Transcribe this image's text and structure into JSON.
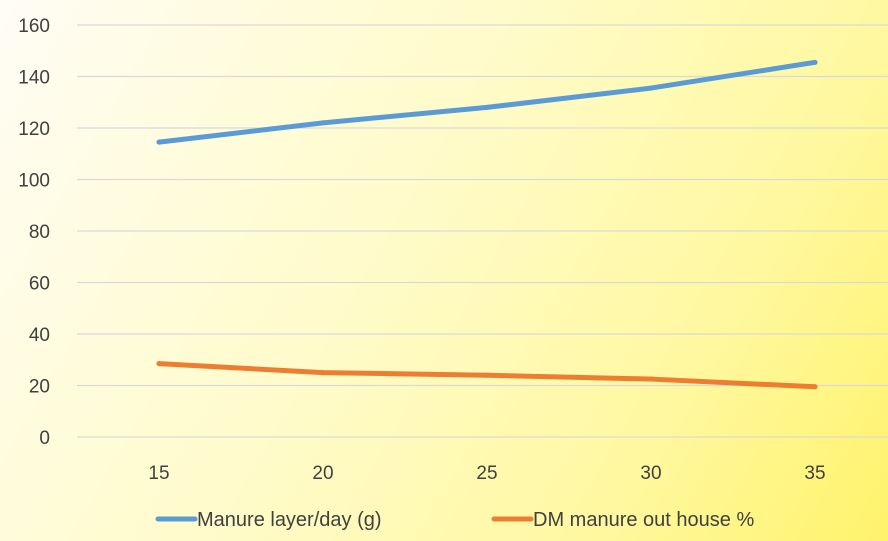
{
  "chart_data": {
    "type": "line",
    "x": [
      15,
      20,
      25,
      30,
      35
    ],
    "ylim": [
      0,
      160
    ],
    "y_ticks": [
      0,
      20,
      40,
      60,
      80,
      100,
      120,
      140,
      160
    ],
    "grid": true,
    "legend_position": "bottom",
    "series": [
      {
        "name": "Manure layer/day (g)",
        "color": "#5b9bd5",
        "values": [
          114.5,
          122,
          128,
          135.5,
          145.5
        ]
      },
      {
        "name": "DM manure out house %",
        "color": "#ed7d31",
        "values": [
          28.5,
          25,
          24,
          22.5,
          19.5
        ]
      }
    ]
  }
}
